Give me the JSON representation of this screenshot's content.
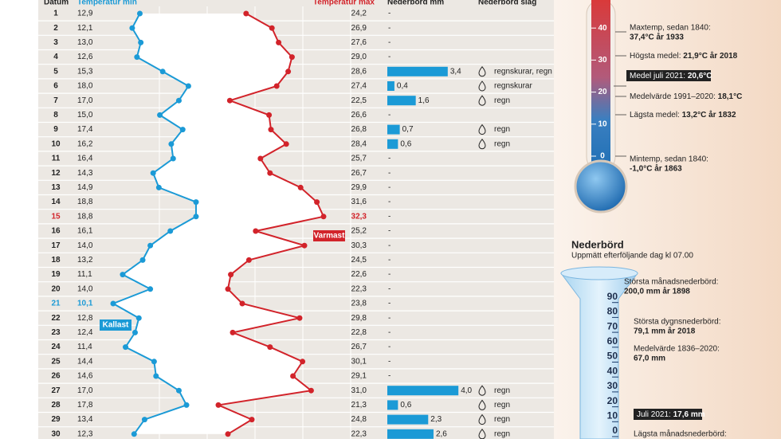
{
  "header": {
    "datum": "Datum",
    "tmin": "Temperatur min",
    "tmax": "Temperatur max",
    "precip": "Nederbörd mm",
    "kind": "Nederbörd slag"
  },
  "rows": [
    {
      "day": "1",
      "min": {
        "value": 12.9,
        "label": "12,9"
      },
      "max": {
        "value": 24.2,
        "label": "24,2"
      },
      "precip": "-"
    },
    {
      "day": "2",
      "min": {
        "value": 12.1,
        "label": "12,1"
      },
      "max": {
        "value": 26.9,
        "label": "26,9"
      },
      "precip": "-"
    },
    {
      "day": "3",
      "min": {
        "value": 13.0,
        "label": "13,0"
      },
      "max": {
        "value": 27.6,
        "label": "27,6"
      },
      "precip": "-"
    },
    {
      "day": "4",
      "min": {
        "value": 12.6,
        "label": "12,6"
      },
      "max": {
        "value": 29.0,
        "label": "29,0"
      },
      "precip": "-"
    },
    {
      "day": "5",
      "min": {
        "value": 15.3,
        "label": "15,3"
      },
      "max": {
        "value": 28.6,
        "label": "28,6"
      },
      "precip": {
        "value": 3.4,
        "label": "3,4"
      },
      "kind": "regnskurar, regn"
    },
    {
      "day": "6",
      "min": {
        "value": 18.0,
        "label": "18,0"
      },
      "max": {
        "value": 27.4,
        "label": "27,4"
      },
      "precip": {
        "value": 0.4,
        "label": "0,4"
      },
      "kind": "regnskurar"
    },
    {
      "day": "7",
      "min": {
        "value": 17.0,
        "label": "17,0"
      },
      "max": {
        "value": 22.5,
        "label": "22,5"
      },
      "precip": {
        "value": 1.6,
        "label": "1,6"
      },
      "kind": "regn"
    },
    {
      "day": "8",
      "min": {
        "value": 15.0,
        "label": "15,0"
      },
      "max": {
        "value": 26.6,
        "label": "26,6"
      },
      "precip": "-"
    },
    {
      "day": "9",
      "min": {
        "value": 17.4,
        "label": "17,4"
      },
      "max": {
        "value": 26.8,
        "label": "26,8"
      },
      "precip": {
        "value": 0.7,
        "label": "0,7"
      },
      "kind": "regn"
    },
    {
      "day": "10",
      "min": {
        "value": 16.2,
        "label": "16,2"
      },
      "max": {
        "value": 28.4,
        "label": "28,4"
      },
      "precip": {
        "value": 0.6,
        "label": "0,6"
      },
      "kind": "regn"
    },
    {
      "day": "11",
      "min": {
        "value": 16.4,
        "label": "16,4"
      },
      "max": {
        "value": 25.7,
        "label": "25,7"
      },
      "precip": "-"
    },
    {
      "day": "12",
      "min": {
        "value": 14.3,
        "label": "14,3"
      },
      "max": {
        "value": 26.7,
        "label": "26,7"
      },
      "precip": "-"
    },
    {
      "day": "13",
      "min": {
        "value": 14.9,
        "label": "14,9"
      },
      "max": {
        "value": 29.9,
        "label": "29,9"
      },
      "precip": "-"
    },
    {
      "day": "14",
      "min": {
        "value": 18.8,
        "label": "18,8"
      },
      "max": {
        "value": 31.6,
        "label": "31,6"
      },
      "precip": "-"
    },
    {
      "day": "15",
      "min": {
        "value": 18.8,
        "label": "18,8"
      },
      "max": {
        "value": 32.3,
        "label": "32,3"
      },
      "precip": "-"
    },
    {
      "day": "16",
      "min": {
        "value": 16.1,
        "label": "16,1"
      },
      "max": {
        "value": 25.2,
        "label": "25,2"
      },
      "precip": "-"
    },
    {
      "day": "17",
      "min": {
        "value": 14.0,
        "label": "14,0"
      },
      "max": {
        "value": 30.3,
        "label": "30,3"
      },
      "precip": "-"
    },
    {
      "day": "18",
      "min": {
        "value": 13.2,
        "label": "13,2"
      },
      "max": {
        "value": 24.5,
        "label": "24,5"
      },
      "precip": "-"
    },
    {
      "day": "19",
      "min": {
        "value": 11.1,
        "label": "11,1"
      },
      "max": {
        "value": 22.6,
        "label": "22,6"
      },
      "precip": "-"
    },
    {
      "day": "20",
      "min": {
        "value": 14.0,
        "label": "14,0"
      },
      "max": {
        "value": 22.3,
        "label": "22,3"
      },
      "precip": "-"
    },
    {
      "day": "21",
      "min": {
        "value": 10.1,
        "label": "10,1"
      },
      "max": {
        "value": 23.8,
        "label": "23,8"
      },
      "precip": "-"
    },
    {
      "day": "22",
      "min": {
        "value": 12.8,
        "label": "12,8"
      },
      "max": {
        "value": 29.8,
        "label": "29,8"
      },
      "precip": "-"
    },
    {
      "day": "23",
      "min": {
        "value": 12.4,
        "label": "12,4"
      },
      "max": {
        "value": 22.8,
        "label": "22,8"
      },
      "precip": "-"
    },
    {
      "day": "24",
      "min": {
        "value": 11.4,
        "label": "11,4"
      },
      "max": {
        "value": 26.7,
        "label": "26,7"
      },
      "precip": "-"
    },
    {
      "day": "25",
      "min": {
        "value": 14.4,
        "label": "14,4"
      },
      "max": {
        "value": 30.1,
        "label": "30,1"
      },
      "precip": "-"
    },
    {
      "day": "26",
      "min": {
        "value": 14.6,
        "label": "14,6"
      },
      "max": {
        "value": 29.1,
        "label": "29,1"
      },
      "precip": "-"
    },
    {
      "day": "27",
      "min": {
        "value": 17.0,
        "label": "17,0"
      },
      "max": {
        "value": 31.0,
        "label": "31,0"
      },
      "precip": {
        "value": 4.0,
        "label": "4,0"
      },
      "kind": "regn"
    },
    {
      "day": "28",
      "min": {
        "value": 17.8,
        "label": "17,8"
      },
      "max": {
        "value": 21.3,
        "label": "21,3"
      },
      "precip": {
        "value": 0.6,
        "label": "0,6"
      },
      "kind": "regn"
    },
    {
      "day": "29",
      "min": {
        "value": 13.4,
        "label": "13,4"
      },
      "max": {
        "value": 24.8,
        "label": "24,8"
      },
      "precip": {
        "value": 2.3,
        "label": "2,3"
      },
      "kind": "regn"
    },
    {
      "day": "30",
      "min": {
        "value": 12.3,
        "label": "12,3"
      },
      "max": {
        "value": 22.3,
        "label": "22,3"
      },
      "precip": {
        "value": 2.6,
        "label": "2,6"
      },
      "kind": "regn"
    }
  ],
  "annotations": {
    "warmest": "Varmast",
    "coldest": "Kallast"
  },
  "thermometer": {
    "ticks": [
      0,
      10,
      20,
      30,
      40
    ],
    "max_label": "Maxtemp, sedan 1840:",
    "max_value": "37,4°C år 1933",
    "high_label": "Högsta medel:",
    "high_value": "21,9°C år 2018",
    "july": "Medel juli 2021:",
    "july_value": "20,6°C",
    "avg_label": "Medelvärde 1991–2020:",
    "avg_value": "18,1°C",
    "low_label": "Lägsta medel:",
    "low_value": "13,2°C år 1832",
    "min_label": "Mintemp, sedan 1840:",
    "min_value": "-1,0°C år 1863"
  },
  "gauge": {
    "title": "Nederbörd",
    "subtitle": "Uppmätt efterföljande dag kl 07.00",
    "ticks": [
      0,
      10,
      20,
      30,
      40,
      50,
      60,
      70,
      80,
      90
    ],
    "max_month_label": "Största månadsnederbörd:",
    "max_month_value": "200,0 mm år 1898",
    "max_day_label": "Största dygnsnederbörd:",
    "max_day_value": "79,1 mm år 2018",
    "avg_label": "Medelvärde 1836–2020:",
    "avg_value": "67,0 mm",
    "july": "Juli 2021:",
    "july_value": "17,6 mm",
    "min_month_label": "Lägsta månadsnederbörd:"
  }
}
